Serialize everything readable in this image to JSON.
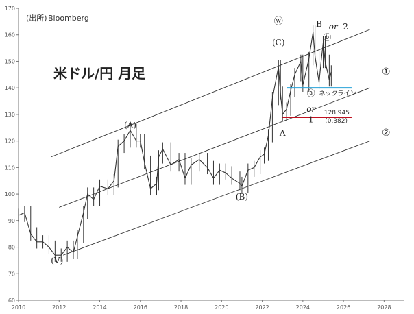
{
  "source": "(出所)",
  "source_name": "Bloomberg",
  "chart_data": {
    "type": "candlestick-monthly",
    "title": "米ドル/円 月足",
    "xlabel": "",
    "ylabel": "",
    "xlim": [
      2010,
      2029
    ],
    "ylim": [
      60,
      170
    ],
    "x_ticks": [
      "2010",
      "2012",
      "2014",
      "2016",
      "2018",
      "2020",
      "2022",
      "2024",
      "2026",
      "2028"
    ],
    "y_ticks": [
      "60",
      "70",
      "80",
      "90",
      "100",
      "110",
      "120",
      "130",
      "140",
      "150",
      "160",
      "170"
    ],
    "grid": false,
    "price_points": [
      [
        2010.0,
        92
      ],
      [
        2010.3,
        93
      ],
      [
        2010.6,
        85
      ],
      [
        2010.9,
        82
      ],
      [
        2011.2,
        82
      ],
      [
        2011.5,
        80
      ],
      [
        2011.8,
        77
      ],
      [
        2012.1,
        77
      ],
      [
        2012.4,
        80
      ],
      [
        2012.7,
        78
      ],
      [
        2012.9,
        84
      ],
      [
        2013.2,
        93
      ],
      [
        2013.4,
        100
      ],
      [
        2013.7,
        98
      ],
      [
        2014.0,
        103
      ],
      [
        2014.4,
        102
      ],
      [
        2014.7,
        105
      ],
      [
        2014.9,
        118
      ],
      [
        2015.2,
        120
      ],
      [
        2015.5,
        124
      ],
      [
        2015.8,
        120
      ],
      [
        2016.0,
        120
      ],
      [
        2016.2,
        112
      ],
      [
        2016.5,
        102
      ],
      [
        2016.8,
        104
      ],
      [
        2016.9,
        114
      ],
      [
        2017.1,
        117
      ],
      [
        2017.5,
        111
      ],
      [
        2017.9,
        113
      ],
      [
        2018.2,
        106
      ],
      [
        2018.5,
        111
      ],
      [
        2018.9,
        113
      ],
      [
        2019.3,
        110
      ],
      [
        2019.6,
        106
      ],
      [
        2019.9,
        109
      ],
      [
        2020.2,
        108
      ],
      [
        2020.5,
        106
      ],
      [
        2020.9,
        104
      ],
      [
        2021.0,
        103
      ],
      [
        2021.3,
        109
      ],
      [
        2021.6,
        110
      ],
      [
        2021.9,
        114
      ],
      [
        2022.1,
        115
      ],
      [
        2022.3,
        122
      ],
      [
        2022.5,
        136
      ],
      [
        2022.8,
        148
      ],
      [
        2022.9,
        138
      ],
      [
        2023.0,
        130
      ],
      [
        2023.2,
        132
      ],
      [
        2023.4,
        139
      ],
      [
        2023.6,
        145
      ],
      [
        2023.9,
        150
      ],
      [
        2024.0,
        141
      ],
      [
        2024.3,
        151
      ],
      [
        2024.5,
        161
      ],
      [
        2024.6,
        152
      ],
      [
        2024.8,
        142
      ],
      [
        2024.9,
        150
      ],
      [
        2025.0,
        157
      ],
      [
        2025.1,
        150
      ],
      [
        2025.3,
        143
      ],
      [
        2025.4,
        146
      ]
    ],
    "annotations": [
      {
        "text": "(A)",
        "x": 2015.5,
        "y": 125
      },
      {
        "text": "(V)",
        "x": 2011.9,
        "y": 74
      },
      {
        "text": "(B)",
        "x": 2021.0,
        "y": 98
      },
      {
        "text": "(C)",
        "x": 2022.8,
        "y": 156
      },
      {
        "text": "ⓦ",
        "x": 2022.8,
        "y": 164
      },
      {
        "text": "A",
        "x": 2023.0,
        "y": 122
      },
      {
        "text": "B",
        "x": 2024.8,
        "y": 163
      },
      {
        "text": "or",
        "x": 2025.5,
        "y": 162
      },
      {
        "text": "2",
        "x": 2026.1,
        "y": 162
      },
      {
        "text": "ⓑ",
        "x": 2025.2,
        "y": 158
      },
      {
        "text": "ⓐ",
        "x": 2024.4,
        "y": 137
      },
      {
        "text": "or",
        "x": 2024.4,
        "y": 131
      },
      {
        "text": "1",
        "x": 2024.4,
        "y": 127
      },
      {
        "text": "①",
        "x": 2028.1,
        "y": 145
      },
      {
        "text": "②",
        "x": 2028.1,
        "y": 122
      }
    ],
    "neckline": {
      "label": "ネックライン",
      "y": 140,
      "x": [
        2023.2,
        2026.4
      ],
      "color": "#2aa3d8"
    },
    "support": {
      "label": "128.945",
      "sublabel": "(0.382)",
      "y": 128.945,
      "x": [
        2023.0,
        2026.4
      ],
      "color": "#c0101f"
    },
    "channel_lines": [
      {
        "x": [
          2011.6,
          2027.3
        ],
        "y": [
          114,
          162
        ],
        "color": "#333333"
      },
      {
        "x": [
          2012.0,
          2027.3
        ],
        "y": [
          95,
          140
        ],
        "color": "#333333"
      },
      {
        "x": [
          2012.2,
          2027.3
        ],
        "y": [
          77,
          120
        ],
        "color": "#333333"
      }
    ],
    "colors": {
      "price": "#333333",
      "text": "#222222",
      "red": "#c0101f",
      "blue": "#2aa3d8"
    }
  }
}
